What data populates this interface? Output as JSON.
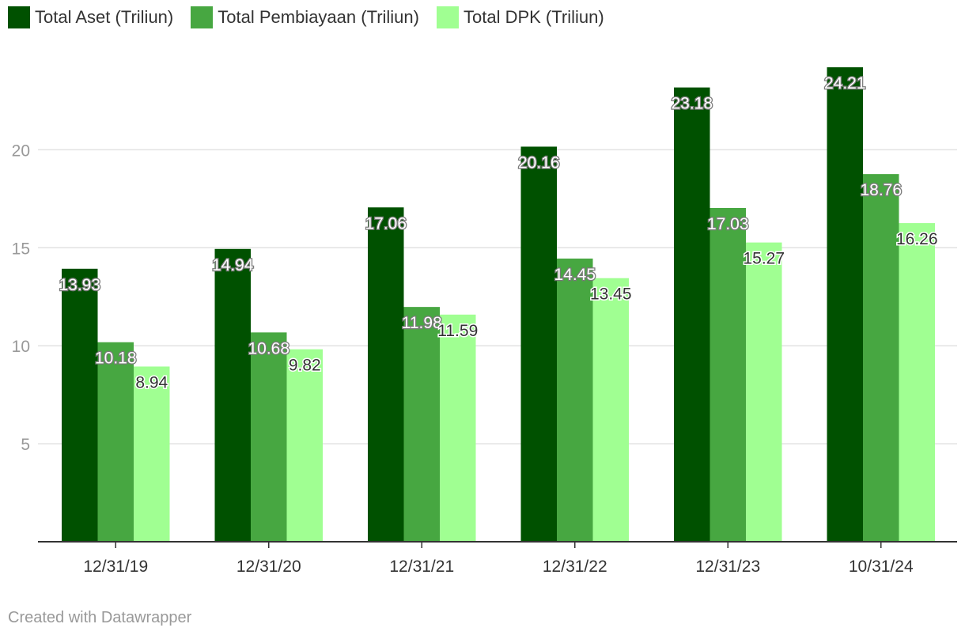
{
  "chart_data": {
    "type": "bar",
    "categories": [
      "12/31/19",
      "12/31/20",
      "12/31/21",
      "12/31/22",
      "12/31/23",
      "10/31/24"
    ],
    "series": [
      {
        "name": "Total Aset (Triliun)",
        "color": "#005100",
        "values": [
          13.93,
          14.94,
          17.06,
          20.16,
          23.18,
          24.21
        ]
      },
      {
        "name": "Total Pembiayaan (Triliun)",
        "color": "#47a741",
        "values": [
          10.18,
          10.68,
          11.98,
          14.45,
          17.03,
          18.76
        ]
      },
      {
        "name": "Total DPK (Triliun)",
        "color": "#a0ff92",
        "values": [
          8.94,
          9.82,
          11.59,
          13.45,
          15.27,
          16.26
        ]
      }
    ],
    "value_labels": [
      [
        "13.93",
        "14.94",
        "17.06",
        "20.16",
        "23.18",
        "24.21"
      ],
      [
        "10.18",
        "10.68",
        "11.98",
        "14.45",
        "17.03",
        "18.76"
      ],
      [
        "8.94",
        "9.82",
        "11.59",
        "13.45",
        "15.27",
        "16.26"
      ]
    ],
    "yticks": [
      "5",
      "10",
      "15",
      "20"
    ],
    "ylim": [
      0,
      25
    ],
    "grid": true,
    "legend_position": "top-left"
  },
  "footer": {
    "credit": "Created with Datawrapper"
  }
}
